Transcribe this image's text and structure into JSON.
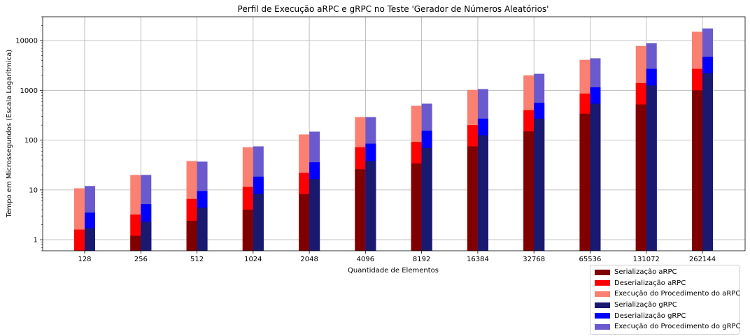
{
  "chart_data": {
    "type": "bar",
    "title": "Perfil de Execução aRPC e gRPC no Teste 'Gerador de Números Aleatórios'",
    "xlabel": "Quantidade de Elementos",
    "ylabel": "Tempo em Microssegundos (Escala Logarítmica)",
    "yscale": "log",
    "ylim": [
      0.6,
      30000
    ],
    "yticks": [
      1,
      10,
      100,
      1000,
      10000
    ],
    "ytick_labels": [
      "1",
      "10",
      "100",
      "1000",
      "10000"
    ],
    "grid": true,
    "legend_position": "bottom-right",
    "categories": [
      "128",
      "256",
      "512",
      "1024",
      "2048",
      "4096",
      "8192",
      "16384",
      "32768",
      "65536",
      "131072",
      "262144"
    ],
    "series": [
      {
        "name": "Serialização aRPC",
        "group": "aRPC",
        "color": "#800000",
        "values": [
          0.5,
          1.2,
          2.4,
          4.0,
          8.2,
          26,
          34,
          75,
          150,
          340,
          520,
          1000
        ]
      },
      {
        "name": "Deserialização aRPC",
        "group": "aRPC",
        "color": "#ff0000",
        "values": [
          1.6,
          3.2,
          6.6,
          11.5,
          22,
          72,
          92,
          200,
          400,
          860,
          1400,
          2700
        ]
      },
      {
        "name": "Execução do Procedimento do aRPC",
        "group": "aRPC",
        "color": "#fa8072",
        "values": [
          10.8,
          20,
          38,
          72,
          130,
          290,
          490,
          1020,
          2000,
          4100,
          7800,
          15000
        ]
      },
      {
        "name": "Serialização gRPC",
        "group": "gRPC",
        "color": "#191970",
        "values": [
          1.7,
          2.3,
          4.4,
          8.3,
          16.5,
          38,
          70,
          125,
          270,
          540,
          1250,
          2200
        ]
      },
      {
        "name": "Deserialização gRPC",
        "group": "gRPC",
        "color": "#0000ff",
        "values": [
          3.5,
          5.2,
          9.5,
          18.5,
          36,
          85,
          155,
          270,
          560,
          1150,
          2700,
          4700
        ]
      },
      {
        "name": "Execução do Procedimento do gRPC",
        "group": "gRPC",
        "color": "#6a5acd",
        "values": [
          12,
          20,
          37,
          75,
          148,
          290,
          540,
          1060,
          2150,
          4400,
          8800,
          17500
        ]
      }
    ]
  }
}
